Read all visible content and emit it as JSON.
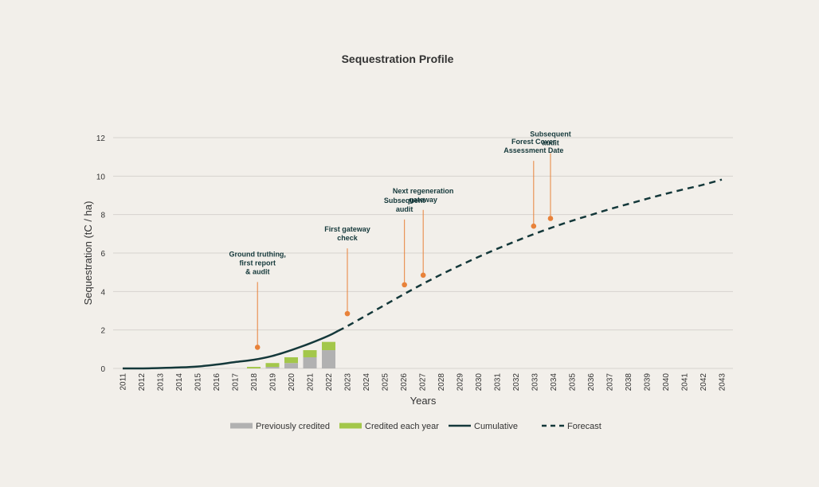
{
  "chart_data": {
    "type": "bar+line",
    "title": "Sequestration Profile",
    "xlabel": "Years",
    "ylabel": "Sequestration (tC / ha)",
    "ylim": [
      0,
      12
    ],
    "yticks": [
      0,
      2,
      4,
      6,
      8,
      10,
      12
    ],
    "grid": true,
    "legend_position": "bottom",
    "categories": [
      "2011",
      "2012",
      "2013",
      "2014",
      "2015",
      "2016",
      "2017",
      "2018",
      "2019",
      "2020",
      "2021",
      "2022",
      "2023",
      "2024",
      "2025",
      "2026",
      "2027",
      "2028",
      "2029",
      "2030",
      "2031",
      "2032",
      "2033",
      "2034",
      "2035",
      "2036",
      "2037",
      "2038",
      "2039",
      "2040",
      "2041",
      "2042",
      "2043"
    ],
    "bars": {
      "years": [
        "2018",
        "2019",
        "2020",
        "2021",
        "2022"
      ],
      "previously_credited": [
        0.0,
        0.08,
        0.28,
        0.58,
        0.95
      ],
      "credited_each_year": [
        0.08,
        0.2,
        0.3,
        0.37,
        0.43
      ]
    },
    "series": [
      {
        "name": "Cumulative",
        "x": [
          2011,
          2012,
          2013,
          2014,
          2015,
          2016,
          2017,
          2018,
          2019,
          2020,
          2021,
          2022,
          2022.5
        ],
        "values": [
          0,
          0,
          0.02,
          0.05,
          0.1,
          0.2,
          0.33,
          0.45,
          0.65,
          0.95,
          1.3,
          1.7,
          1.95
        ]
      },
      {
        "name": "Forecast",
        "x": [
          2022.5,
          2023,
          2024,
          2025,
          2026,
          2027,
          2028,
          2029,
          2030,
          2031,
          2032,
          2033,
          2034,
          2035,
          2036,
          2037,
          2038,
          2039,
          2040,
          2041,
          2042,
          2043
        ],
        "values": [
          1.95,
          2.2,
          2.75,
          3.3,
          3.85,
          4.38,
          4.88,
          5.35,
          5.8,
          6.22,
          6.62,
          7.0,
          7.35,
          7.68,
          7.98,
          8.28,
          8.55,
          8.82,
          9.08,
          9.32,
          9.55,
          9.82
        ]
      }
    ],
    "annotations": [
      {
        "lines": [
          "Ground truthing,",
          "first report",
          "& audit"
        ],
        "x": 2018.2,
        "y": 1.1
      },
      {
        "lines": [
          "First gateway",
          "check"
        ],
        "x": 2023,
        "y": 2.85
      },
      {
        "lines": [
          "Subsequent",
          "audit"
        ],
        "x": 2026.05,
        "y": 4.35
      },
      {
        "lines": [
          "Next regeneration",
          "gateway"
        ],
        "x": 2027.05,
        "y": 4.85
      },
      {
        "lines": [
          "Forest Cover",
          "Assessment Date"
        ],
        "x": 2032.95,
        "y": 7.4
      },
      {
        "lines": [
          "Subsequent",
          "audit"
        ],
        "x": 2033.85,
        "y": 7.8
      }
    ],
    "legend": [
      {
        "label": "Previously credited",
        "kind": "bar",
        "color": "#b1b1b1"
      },
      {
        "label": "Credited each year",
        "kind": "bar",
        "color": "#a3c74a"
      },
      {
        "label": "Cumulative",
        "kind": "line",
        "color": "#14383a"
      },
      {
        "label": "Forecast",
        "kind": "dashed",
        "color": "#14383a"
      }
    ],
    "colors": {
      "previously_credited": "#b1b1b1",
      "credited_each_year": "#a3c74a",
      "line": "#14383a",
      "annotation_marker": "#e8823a",
      "grid": "#d6d3cf"
    }
  }
}
